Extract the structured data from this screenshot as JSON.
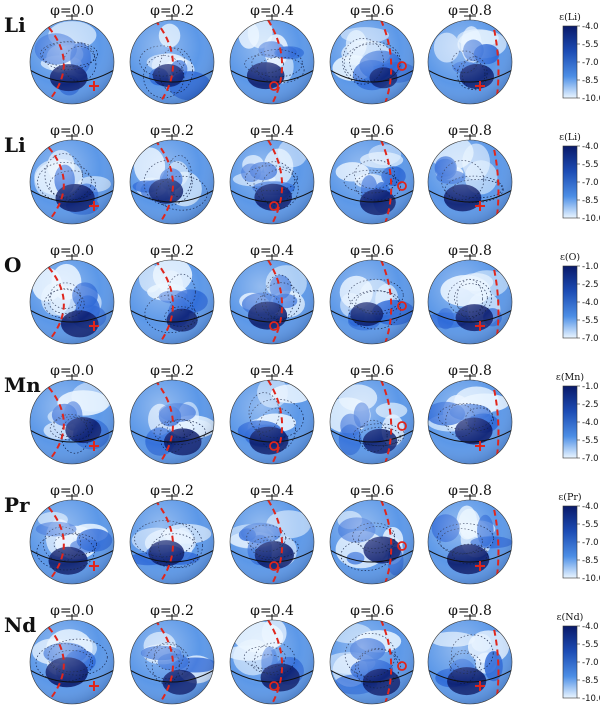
{
  "phases": [
    "φ=0.0",
    "φ=0.2",
    "φ=0.4",
    "φ=0.6",
    "φ=0.8"
  ],
  "colors": {
    "dark": "#0a1a6a",
    "mid": "#2a66d6",
    "light": "#e6f3ff",
    "pole": "#e0261c"
  },
  "rows": [
    {
      "element": "Li",
      "cb_title": "ε(Li)",
      "cb_ticks": [
        "-4.0",
        "-5.5",
        "-7.0",
        "-8.5",
        "-10.0"
      ],
      "marker": [
        "cross",
        "none",
        "circle",
        "circle",
        "cross"
      ],
      "intensity": [
        0.55,
        0.35,
        0.55,
        0.25,
        0.45
      ]
    },
    {
      "element": "Li",
      "cb_title": "ε(Li)",
      "cb_ticks": [
        "-4.0",
        "-5.5",
        "-7.0",
        "-8.5",
        "-10.0"
      ],
      "marker": [
        "cross",
        "none",
        "circle",
        "circle",
        "cross"
      ],
      "intensity": [
        0.6,
        0.45,
        0.55,
        0.5,
        0.55
      ]
    },
    {
      "element": "O",
      "cb_title": "ε(O)",
      "cb_ticks": [
        "-1.0",
        "-2.5",
        "-4.0",
        "-5.5",
        "-7.0"
      ],
      "marker": [
        "cross",
        "none",
        "circle",
        "circle",
        "cross"
      ],
      "intensity": [
        0.55,
        0.35,
        0.6,
        0.4,
        0.55
      ]
    },
    {
      "element": "Mn",
      "cb_title": "ε(Mn)",
      "cb_ticks": [
        "-1.0",
        "-2.5",
        "-4.0",
        "-5.5",
        "-7.0"
      ],
      "marker": [
        "cross",
        "none",
        "circle",
        "circle",
        "cross"
      ],
      "intensity": [
        0.5,
        0.55,
        0.6,
        0.45,
        0.55
      ]
    },
    {
      "element": "Pr",
      "cb_title": "ε(Pr)",
      "cb_ticks": [
        "-4.0",
        "-5.5",
        "-7.0",
        "-8.5",
        "-10.0"
      ],
      "marker": [
        "cross",
        "none",
        "circle",
        "circle",
        "cross"
      ],
      "intensity": [
        0.6,
        0.5,
        0.6,
        0.55,
        0.7
      ]
    },
    {
      "element": "Nd",
      "cb_title": "ε(Nd)",
      "cb_ticks": [
        "-4.0",
        "-5.5",
        "-7.0",
        "-8.5",
        "-10.0"
      ],
      "marker": [
        "cross",
        "none",
        "circle",
        "circle",
        "cross"
      ],
      "intensity": [
        0.7,
        0.45,
        0.6,
        0.55,
        0.6
      ]
    }
  ]
}
